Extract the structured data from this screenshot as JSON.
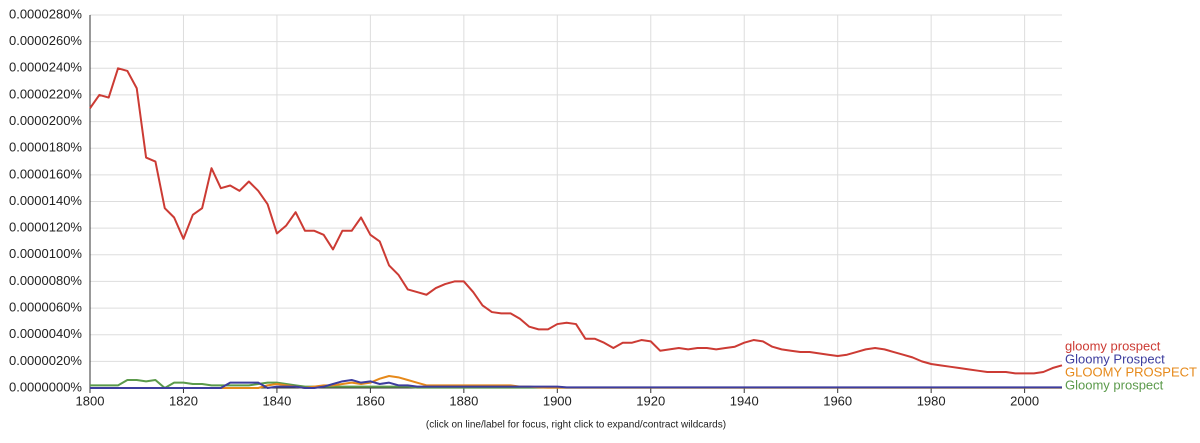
{
  "chart_data": {
    "type": "line",
    "footnote": "(click on line/label for focus, right click to expand/contract wildcards)",
    "x": [
      1800,
      1802,
      1804,
      1806,
      1808,
      1810,
      1812,
      1814,
      1816,
      1818,
      1820,
      1822,
      1824,
      1826,
      1828,
      1830,
      1832,
      1834,
      1836,
      1838,
      1840,
      1842,
      1844,
      1846,
      1848,
      1850,
      1852,
      1854,
      1856,
      1858,
      1860,
      1862,
      1864,
      1866,
      1868,
      1870,
      1872,
      1874,
      1876,
      1878,
      1880,
      1882,
      1884,
      1886,
      1888,
      1890,
      1892,
      1894,
      1896,
      1898,
      1900,
      1902,
      1904,
      1906,
      1908,
      1910,
      1912,
      1914,
      1916,
      1918,
      1920,
      1922,
      1924,
      1926,
      1928,
      1930,
      1932,
      1934,
      1936,
      1938,
      1940,
      1942,
      1944,
      1946,
      1948,
      1950,
      1952,
      1954,
      1956,
      1958,
      1960,
      1962,
      1964,
      1966,
      1968,
      1970,
      1972,
      1974,
      1976,
      1978,
      1980,
      1982,
      1984,
      1986,
      1988,
      1990,
      1992,
      1994,
      1996,
      1998,
      2000,
      2002,
      2004,
      2006,
      2008
    ],
    "series": [
      {
        "name": "gloomy prospect",
        "color": "#cc3b34",
        "values": [
          2.1e-05,
          2.2e-05,
          2.18e-05,
          2.4e-05,
          2.38e-05,
          2.25e-05,
          1.73e-05,
          1.7e-05,
          1.35e-05,
          1.28e-05,
          1.12e-05,
          1.3e-05,
          1.35e-05,
          1.65e-05,
          1.5e-05,
          1.52e-05,
          1.48e-05,
          1.55e-05,
          1.48e-05,
          1.38e-05,
          1.16e-05,
          1.22e-05,
          1.32e-05,
          1.18e-05,
          1.18e-05,
          1.15e-05,
          1.04e-05,
          1.18e-05,
          1.18e-05,
          1.28e-05,
          1.15e-05,
          1.1e-05,
          9.2e-06,
          8.5e-06,
          7.4e-06,
          7.2e-06,
          7e-06,
          7.5e-06,
          7.8e-06,
          8e-06,
          8e-06,
          7.2e-06,
          6.2e-06,
          5.7e-06,
          5.6e-06,
          5.6e-06,
          5.2e-06,
          4.6e-06,
          4.4e-06,
          4.4e-06,
          4.8e-06,
          4.9e-06,
          4.8e-06,
          3.7e-06,
          3.7e-06,
          3.4e-06,
          3e-06,
          3.4e-06,
          3.4e-06,
          3.6e-06,
          3.5e-06,
          2.8e-06,
          2.9e-06,
          3e-06,
          2.9e-06,
          3e-06,
          3e-06,
          2.9e-06,
          3e-06,
          3.1e-06,
          3.4e-06,
          3.6e-06,
          3.5e-06,
          3.1e-06,
          2.9e-06,
          2.8e-06,
          2.7e-06,
          2.7e-06,
          2.6e-06,
          2.5e-06,
          2.4e-06,
          2.5e-06,
          2.7e-06,
          2.9e-06,
          3e-06,
          2.9e-06,
          2.7e-06,
          2.5e-06,
          2.3e-06,
          2e-06,
          1.8e-06,
          1.7e-06,
          1.6e-06,
          1.5e-06,
          1.4e-06,
          1.3e-06,
          1.2e-06,
          1.2e-06,
          1.2e-06,
          1.1e-06,
          1.1e-06,
          1.1e-06,
          1.2e-06,
          1.5e-06,
          1.7e-06
        ]
      },
      {
        "name": "Gloomy Prospect",
        "color": "#3d3d9e",
        "values": [
          0,
          0,
          0,
          0,
          0,
          0,
          0,
          0,
          0,
          0,
          0,
          0,
          0,
          0,
          0,
          4e-07,
          4e-07,
          4e-07,
          4e-07,
          0,
          1e-07,
          1e-07,
          1e-07,
          0,
          0,
          1e-07,
          3e-07,
          5e-07,
          6e-07,
          4e-07,
          5e-07,
          3e-07,
          4e-07,
          2e-07,
          2e-07,
          1e-07,
          1e-07,
          1e-07,
          1e-07,
          1e-07,
          1e-07,
          1e-07,
          1e-07,
          1e-07,
          1e-07,
          1e-07,
          1e-07,
          1e-07,
          1e-07,
          1e-07,
          1e-07,
          5e-08,
          5e-08,
          5e-08,
          5e-08,
          5e-08,
          5e-08,
          5e-08,
          5e-08,
          5e-08,
          5e-08,
          5e-08,
          5e-08,
          5e-08,
          5e-08,
          5e-08,
          5e-08,
          5e-08,
          5e-08,
          5e-08,
          5e-08,
          5e-08,
          5e-08,
          5e-08,
          5e-08,
          5e-08,
          5e-08,
          5e-08,
          5e-08,
          5e-08,
          5e-08,
          5e-08,
          5e-08,
          5e-08,
          5e-08,
          5e-08,
          5e-08,
          5e-08,
          5e-08,
          5e-08,
          5e-08,
          5e-08,
          5e-08,
          5e-08,
          5e-08,
          5e-08,
          5e-08,
          5e-08,
          5e-08,
          5e-08,
          5e-08,
          5e-08,
          5e-08,
          5e-08,
          5e-08
        ]
      },
      {
        "name": "GLOOMY PROSPECT",
        "color": "#e6891a",
        "values": [
          0,
          0,
          0,
          0,
          0,
          0,
          0,
          0,
          0,
          0,
          0,
          0,
          0,
          0,
          0,
          0,
          0,
          0,
          0,
          2e-07,
          3e-07,
          2e-07,
          1e-07,
          0,
          1e-07,
          2e-07,
          2e-07,
          3e-07,
          4e-07,
          3e-07,
          4e-07,
          7e-07,
          9e-07,
          8e-07,
          6e-07,
          4e-07,
          2e-07,
          2e-07,
          2e-07,
          2e-07,
          2e-07,
          2e-07,
          2e-07,
          2e-07,
          2e-07,
          2e-07,
          1e-07,
          1e-07,
          5e-08,
          3e-08,
          3e-08,
          3e-08,
          3e-08,
          3e-08,
          3e-08,
          3e-08,
          3e-08,
          3e-08,
          3e-08,
          3e-08,
          3e-08,
          3e-08,
          3e-08,
          3e-08,
          3e-08,
          3e-08,
          3e-08,
          3e-08,
          3e-08,
          3e-08,
          3e-08,
          3e-08,
          3e-08,
          3e-08,
          3e-08,
          3e-08,
          3e-08,
          3e-08,
          3e-08,
          3e-08,
          3e-08,
          3e-08,
          3e-08,
          3e-08,
          3e-08,
          3e-08,
          3e-08,
          3e-08,
          3e-08,
          3e-08,
          3e-08,
          3e-08,
          3e-08,
          3e-08,
          3e-08,
          3e-08,
          3e-08,
          3e-08,
          3e-08,
          3e-08,
          3e-08,
          3e-08,
          3e-08,
          3e-08,
          3e-08
        ]
      },
      {
        "name": "Gloomy prospect",
        "color": "#5b9a4b",
        "values": [
          2e-07,
          2e-07,
          2e-07,
          2e-07,
          6e-07,
          6e-07,
          5e-07,
          6e-07,
          0,
          4e-07,
          4e-07,
          3e-07,
          3e-07,
          2e-07,
          2e-07,
          2e-07,
          2e-07,
          2e-07,
          3e-07,
          4e-07,
          4e-07,
          3e-07,
          2e-07,
          1e-07,
          1e-07,
          1e-07,
          1e-07,
          1e-07,
          1e-07,
          1e-07,
          1e-07,
          1e-07,
          1e-07,
          1e-07,
          1e-07,
          3e-08,
          3e-08,
          3e-08,
          3e-08,
          3e-08,
          3e-08,
          3e-08,
          3e-08,
          3e-08,
          3e-08,
          3e-08,
          3e-08,
          3e-08,
          3e-08,
          3e-08,
          3e-08,
          3e-08,
          3e-08,
          3e-08,
          3e-08,
          3e-08,
          3e-08,
          3e-08,
          3e-08,
          3e-08,
          3e-08,
          3e-08,
          3e-08,
          3e-08,
          3e-08,
          3e-08,
          3e-08,
          3e-08,
          3e-08,
          3e-08,
          3e-08,
          3e-08,
          3e-08,
          3e-08,
          3e-08,
          3e-08,
          3e-08,
          3e-08,
          3e-08,
          3e-08,
          3e-08,
          3e-08,
          3e-08,
          3e-08,
          3e-08,
          3e-08,
          3e-08,
          3e-08,
          3e-08,
          3e-08,
          3e-08,
          3e-08,
          3e-08,
          3e-08,
          3e-08,
          3e-08,
          3e-08,
          3e-08,
          3e-08,
          3e-08,
          3e-08,
          3e-08,
          3e-08,
          3e-08,
          3e-08
        ]
      }
    ],
    "xlim": [
      1800,
      2008
    ],
    "xticks": [
      1800,
      1820,
      1840,
      1860,
      1880,
      1900,
      1920,
      1940,
      1960,
      1980,
      2000
    ],
    "ylim": [
      0,
      2.8e-05
    ],
    "yticks": [
      {
        "value": 0,
        "label": "0.0000000%"
      },
      {
        "value": 2e-06,
        "label": "0.0000020%"
      },
      {
        "value": 4e-06,
        "label": "0.0000040%"
      },
      {
        "value": 6e-06,
        "label": "0.0000060%"
      },
      {
        "value": 8e-06,
        "label": "0.0000080%"
      },
      {
        "value": 1e-05,
        "label": "0.0000100%"
      },
      {
        "value": 1.2e-05,
        "label": "0.0000120%"
      },
      {
        "value": 1.4e-05,
        "label": "0.0000140%"
      },
      {
        "value": 1.6e-05,
        "label": "0.0000160%"
      },
      {
        "value": 1.8e-05,
        "label": "0.0000180%"
      },
      {
        "value": 2e-05,
        "label": "0.0000200%"
      },
      {
        "value": 2.2e-05,
        "label": "0.0000220%"
      },
      {
        "value": 2.4e-05,
        "label": "0.0000240%"
      },
      {
        "value": 2.6e-05,
        "label": "0.0000260%"
      },
      {
        "value": 2.8e-05,
        "label": "0.0000280%"
      }
    ],
    "grid": true
  }
}
